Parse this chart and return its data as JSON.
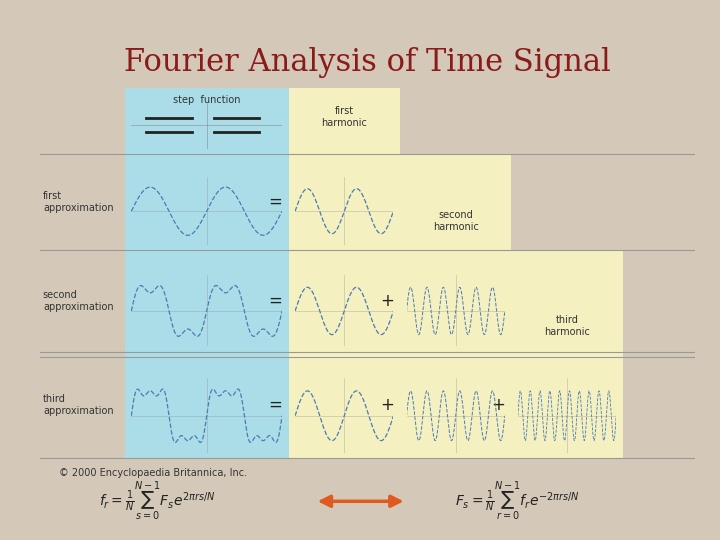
{
  "title": "Fourier Analysis of Time Signal",
  "title_color": "#8B1A1A",
  "title_fontsize": 22,
  "bg_color": "#D4C9B8",
  "panel_bg": "#FFFFFF",
  "step_bg": "#AADDE8",
  "harmonic_bg": "#F5F0C0",
  "section_labels": [
    "step function",
    "first harmonic",
    "second harmonic",
    "third harmonic"
  ],
  "row_labels": [
    "first\napproximation",
    "second\napproximation",
    "third\napproximation"
  ],
  "copyright": "© 2000 Encyclopaedia Britannica, Inc.",
  "formula_left": "$f_r = \\frac{1}{N}\\sum_{s=0}^{N-1} F_s e^{2\\pi rs/N}$",
  "formula_right": "$F_s = \\frac{1}{N}\\sum_{r=0}^{N-1} f_r e^{-2\\pi rs/N}$",
  "arrow_color": "#E05A20",
  "line_color": "#4A7CB5",
  "dashed_color": "#4A7CB5"
}
